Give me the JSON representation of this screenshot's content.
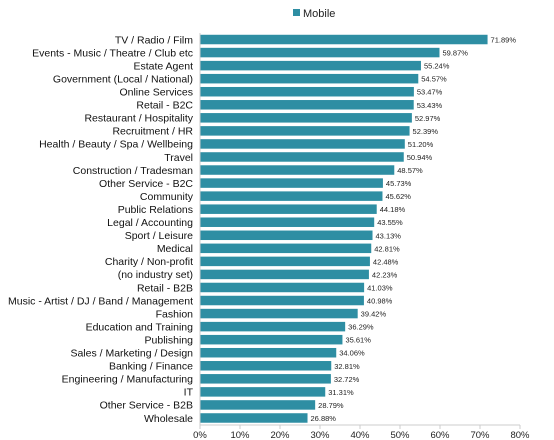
{
  "chart_data": {
    "type": "bar",
    "orientation": "horizontal",
    "title": "",
    "xlabel": "",
    "ylabel": "",
    "legend": {
      "position": "top-center",
      "entries": [
        "Mobile"
      ]
    },
    "xlim": [
      0,
      80
    ],
    "xticks": [
      "0%",
      "10%",
      "20%",
      "30%",
      "40%",
      "50%",
      "60%",
      "70%",
      "80%"
    ],
    "grid": false,
    "bar_color": "#2e8ea3",
    "categories": [
      "TV / Radio / Film",
      "Events - Music / Theatre / Club etc",
      "Estate Agent",
      "Government (Local / National)",
      "Online Services",
      "Retail - B2C",
      "Restaurant / Hospitality",
      "Recruitment / HR",
      "Health / Beauty / Spa / Wellbeing",
      "Travel",
      "Construction / Tradesman",
      "Other Service - B2C",
      "Community",
      "Public Relations",
      "Legal / Accounting",
      "Sport / Leisure",
      "Medical",
      "Charity / Non-profit",
      "(no industry set)",
      "Retail - B2B",
      "Music - Artist / DJ / Band / Management",
      "Fashion",
      "Education and Training",
      "Publishing",
      "Sales / Marketing / Design",
      "Banking / Finance",
      "Engineering / Manufacturing",
      "IT",
      "Other Service - B2B",
      "Wholesale"
    ],
    "series": [
      {
        "name": "Mobile",
        "values": [
          71.89,
          59.87,
          55.24,
          54.57,
          53.47,
          53.43,
          52.97,
          52.39,
          51.2,
          50.94,
          48.57,
          45.73,
          45.62,
          44.18,
          43.55,
          43.13,
          42.81,
          42.48,
          42.23,
          41.03,
          40.98,
          39.42,
          36.29,
          35.61,
          34.06,
          32.81,
          32.72,
          31.31,
          28.79,
          26.88
        ],
        "labels": [
          "71.89%",
          "59.87%",
          "55.24%",
          "54.57%",
          "53.47%",
          "53.43%",
          "52.97%",
          "52.39%",
          "51.20%",
          "50.94%",
          "48.57%",
          "45.73%",
          "45.62%",
          "44.18%",
          "43.55%",
          "43.13%",
          "42.81%",
          "42.48%",
          "42.23%",
          "41.03%",
          "40.98%",
          "39.42%",
          "36.29%",
          "35.61%",
          "34.06%",
          "32.81%",
          "32.72%",
          "31.31%",
          "28.79%",
          "26.88%"
        ]
      }
    ]
  }
}
